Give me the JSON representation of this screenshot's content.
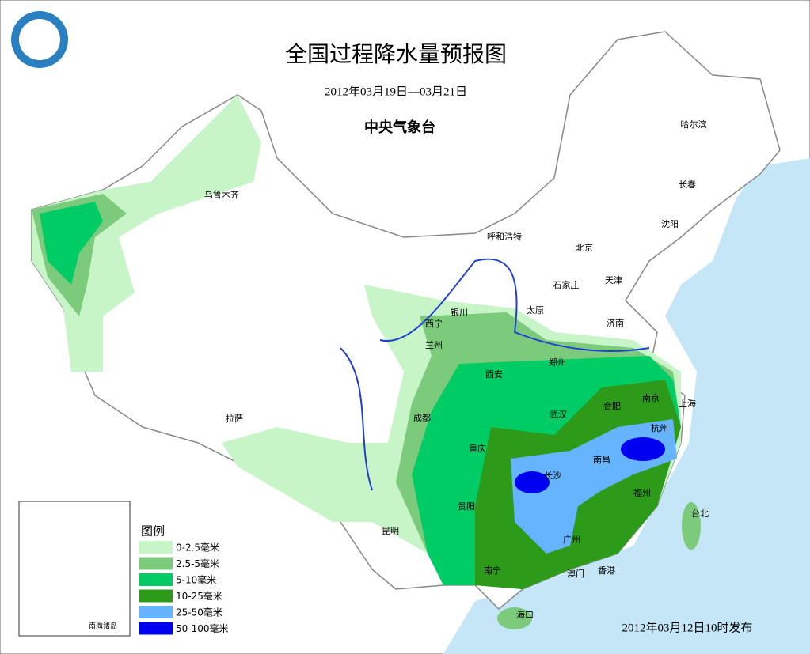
{
  "header": {
    "title": "全国过程降水量预报图",
    "date_range": "2012年03月19日—03月21日",
    "agency": "中央气象台"
  },
  "cities": [
    "哈尔滨",
    "长春",
    "沈阳",
    "乌鲁木齐",
    "呼和浩特",
    "北京",
    "天津",
    "石家庄",
    "太原",
    "济南",
    "西宁",
    "银川",
    "兰州",
    "郑州",
    "西安",
    "南京",
    "上海",
    "合肥",
    "武汉",
    "成都",
    "拉萨",
    "杭州",
    "重庆",
    "南昌",
    "长沙",
    "福州",
    "贵阳",
    "台北",
    "昆明",
    "广州",
    "南宁",
    "澳门",
    "香港",
    "海口"
  ],
  "legend": {
    "title": "图例",
    "items": [
      {
        "label": "0-2.5毫米",
        "color": "#c8f5c8"
      },
      {
        "label": "2.5-5毫米",
        "color": "#7ccb7c"
      },
      {
        "label": "5-10毫米",
        "color": "#00cc66"
      },
      {
        "label": "10-25毫米",
        "color": "#2e9a1a"
      },
      {
        "label": "25-50毫米",
        "color": "#66b3ff"
      },
      {
        "label": "50-100毫米",
        "color": "#0000f0"
      }
    ]
  },
  "inset_label": "南海诸岛",
  "footer": "2012年03月12日10时发布"
}
